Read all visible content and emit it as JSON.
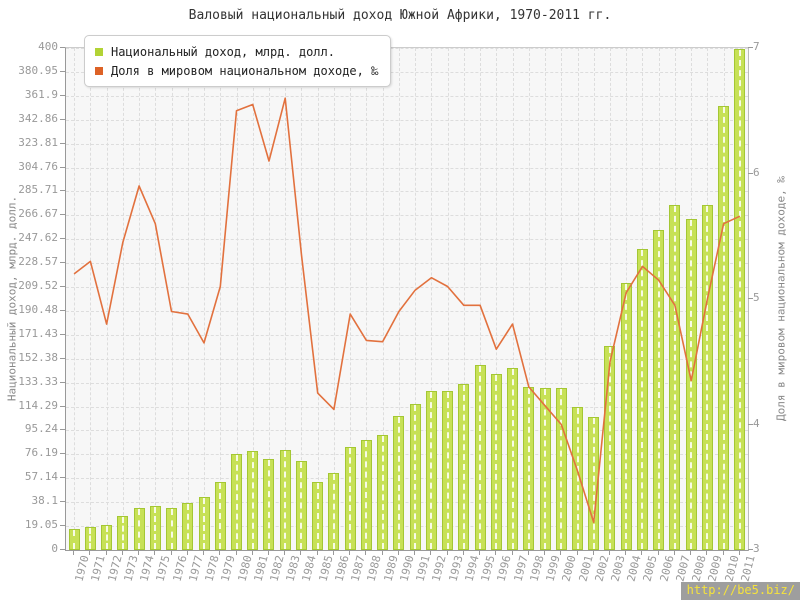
{
  "title": "Валовый национальный доход Южной Африки, 1970-2011 гг.",
  "watermark": "http://be5.biz/",
  "legend": {
    "income_label": "Национальный доход, млрд. долл.",
    "share_label": "Доля в мировом национальном доходе, ‰"
  },
  "colors": {
    "bar_fill": "#c7e156",
    "bar_border": "#a4c734",
    "line": "#e2713e",
    "legend_income_swatch": "#b2d335",
    "legend_share_swatch": "#dd6226",
    "grid": "#dddddd",
    "axis_text": "#999999",
    "title_text": "#333333",
    "watermark_bg": "#9e9e9e",
    "watermark_text": "#f6e33b"
  },
  "chart_data": {
    "type": "bar+line",
    "title": "Валовый национальный доход Южной Африки, 1970-2011 гг.",
    "grid": true,
    "legend_position": "top-left",
    "x": [
      1970,
      1971,
      1972,
      1973,
      1974,
      1975,
      1976,
      1977,
      1978,
      1979,
      1980,
      1981,
      1982,
      1983,
      1984,
      1985,
      1986,
      1987,
      1988,
      1989,
      1990,
      1991,
      1992,
      1993,
      1994,
      1995,
      1996,
      1997,
      1998,
      1999,
      2000,
      2001,
      2002,
      2003,
      2004,
      2005,
      2006,
      2007,
      2008,
      2009,
      2010,
      2011
    ],
    "series": [
      {
        "name": "Национальный доход, млрд. долл.",
        "type": "bar",
        "axis": "left",
        "values": [
          17,
          18.5,
          19.7,
          27,
          33.5,
          35,
          33.5,
          37.5,
          42.5,
          54,
          76.5,
          78.5,
          72.5,
          80,
          71,
          54,
          61,
          82,
          88,
          92,
          107,
          116.5,
          126.5,
          127,
          132.5,
          147.5,
          140,
          145,
          130,
          129,
          129,
          114,
          106,
          162.5,
          213,
          240,
          255,
          275,
          264,
          275,
          354,
          399
        ]
      },
      {
        "name": "Доля в мировом национальном доходе, ‰",
        "type": "line",
        "axis": "right",
        "values": [
          5.2,
          5.3,
          4.8,
          5.45,
          5.9,
          5.6,
          4.9,
          4.88,
          4.65,
          5.1,
          6.5,
          6.55,
          6.1,
          6.6,
          5.35,
          4.25,
          4.12,
          4.88,
          4.67,
          4.66,
          4.9,
          5.07,
          5.17,
          5.1,
          4.95,
          4.95,
          4.6,
          4.8,
          4.3,
          4.15,
          4.0,
          3.63,
          3.22,
          4.5,
          5.05,
          5.26,
          5.15,
          4.95,
          4.35,
          5.0,
          5.6,
          5.66
        ]
      }
    ],
    "left_axis": {
      "label": "Национальный доход, млрд. долл.",
      "min": 0,
      "max": 400,
      "tick_labels": [
        "0",
        "19.05",
        "38.1",
        "57.14",
        "76.19",
        "95.24",
        "114.29",
        "133.33",
        "152.38",
        "171.43",
        "190.48",
        "209.52",
        "228.57",
        "247.62",
        "266.67",
        "285.71",
        "304.76",
        "323.81",
        "342.86",
        "361.9",
        "380.95",
        "400"
      ]
    },
    "right_axis": {
      "label": "Доля в мировом национальном доходе, ‰",
      "min": 3,
      "max": 7,
      "tick_labels": [
        "3",
        "4",
        "5",
        "6",
        "7"
      ]
    }
  }
}
